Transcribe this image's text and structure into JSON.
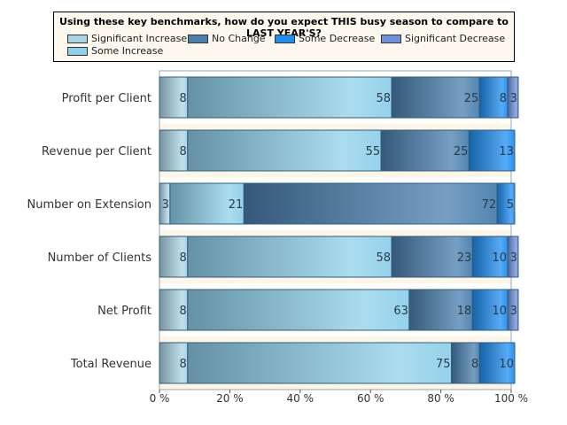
{
  "legend": {
    "title": "Using these key benchmarks, how do you expect THIS busy season to compare to LAST YEAR'S?"
  },
  "chart_data": {
    "type": "bar",
    "orientation": "horizontal",
    "stacked": "percent",
    "title": "Using these key benchmarks, how do you expect THIS busy season to compare to LAST YEAR'S?",
    "categories": [
      "Profit per Client",
      "Revenue per Client",
      "Number on Extension",
      "Number of Clients",
      "Net Profit",
      "Total Revenue"
    ],
    "series": [
      {
        "name": "Significant Increase",
        "color": "#a9d4e4",
        "values": [
          8,
          8,
          3,
          8,
          8,
          8
        ]
      },
      {
        "name": "Some Increase",
        "color": "#8fd0ea",
        "values": [
          58,
          55,
          21,
          58,
          63,
          75
        ]
      },
      {
        "name": "No Change",
        "color": "#4a7fae",
        "values": [
          25,
          25,
          72,
          23,
          18,
          8
        ]
      },
      {
        "name": "Some Decrease",
        "color": "#1f8ef0",
        "values": [
          8,
          13,
          5,
          10,
          10,
          10
        ]
      },
      {
        "name": "Significant Decrease",
        "color": "#6f90dd",
        "values": [
          3,
          0,
          0,
          3,
          3,
          0
        ]
      }
    ],
    "x_ticks": [
      "0 %",
      "20 %",
      "40 %",
      "60 %",
      "80 %",
      "100 %"
    ],
    "xlim": [
      0,
      100
    ],
    "legend_position": "top",
    "background_color": "#fdf5e6"
  }
}
